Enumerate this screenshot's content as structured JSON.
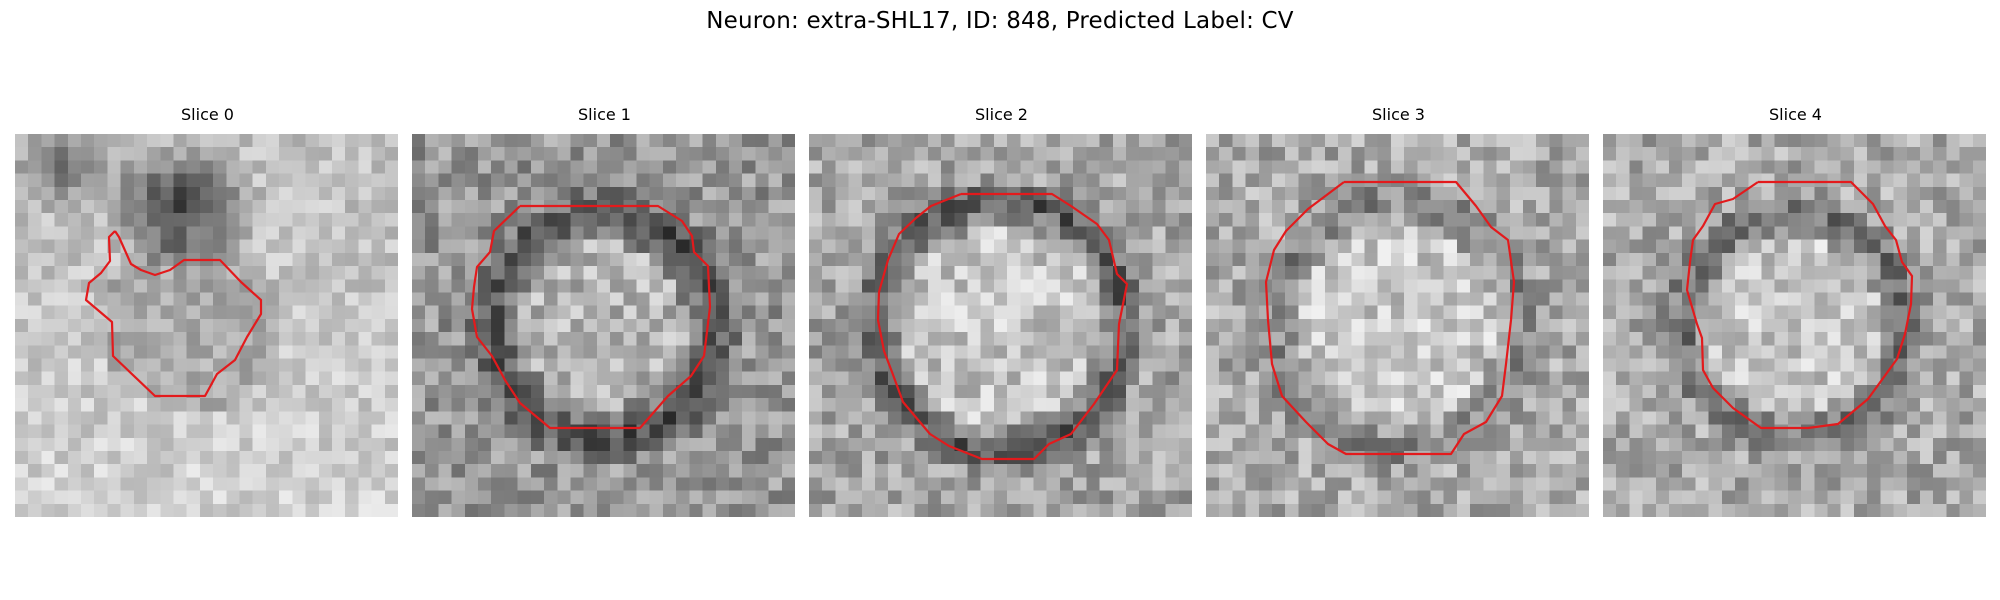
{
  "figure": {
    "title": "Neuron: extra-SHL17, ID: 848, Predicted Label: CV",
    "contour_color": "#e31a1c"
  },
  "panels": [
    {
      "title": "Slice 0",
      "image": "grayscale EM micrograph slice, dark blob upper-left",
      "contour": "irregular outline"
    },
    {
      "title": "Slice 1",
      "image": "grayscale EM micrograph slice, dark ring",
      "contour": "near-circular polygon"
    },
    {
      "title": "Slice 2",
      "image": "grayscale EM micrograph slice, dark ring",
      "contour": "near-circular polygon"
    },
    {
      "title": "Slice 3",
      "image": "grayscale EM micrograph slice, faint ring",
      "contour": "near-circular polygon"
    },
    {
      "title": "Slice 4",
      "image": "grayscale EM micrograph slice, dark ring",
      "contour": "near-circular polygon"
    }
  ]
}
